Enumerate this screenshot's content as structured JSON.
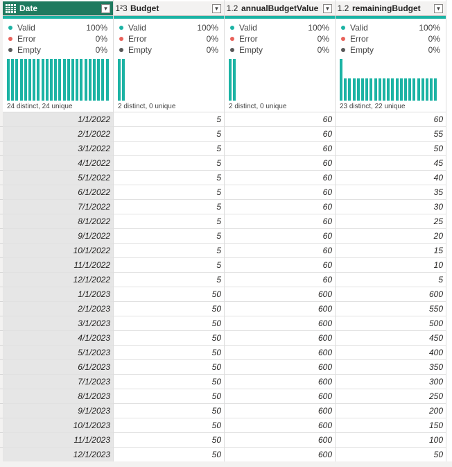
{
  "columns": [
    {
      "type_icon": "calendar-grid-icon",
      "name": "Date",
      "selected": true,
      "quality": {
        "valid": "100%",
        "error": "0%",
        "empty": "0%"
      },
      "distribution_bars": [
        1,
        1,
        1,
        1,
        1,
        1,
        1,
        1,
        1,
        1,
        1,
        1,
        1,
        1,
        1,
        1,
        1,
        1,
        1,
        1,
        1,
        1,
        1,
        1
      ],
      "distinct_text": "24 distinct, 24 unique",
      "values": [
        "1/1/2022",
        "2/1/2022",
        "3/1/2022",
        "4/1/2022",
        "5/1/2022",
        "6/1/2022",
        "7/1/2022",
        "8/1/2022",
        "9/1/2022",
        "10/1/2022",
        "11/1/2022",
        "12/1/2022",
        "1/1/2023",
        "2/1/2023",
        "3/1/2023",
        "4/1/2023",
        "5/1/2023",
        "6/1/2023",
        "7/1/2023",
        "8/1/2023",
        "9/1/2023",
        "10/1/2023",
        "11/1/2023",
        "12/1/2023"
      ]
    },
    {
      "type_icon": "1²3",
      "name": "Budget",
      "selected": false,
      "quality": {
        "valid": "100%",
        "error": "0%",
        "empty": "0%"
      },
      "distribution_bars": [
        1,
        1
      ],
      "distinct_text": "2 distinct, 0 unique",
      "values": [
        "5",
        "5",
        "5",
        "5",
        "5",
        "5",
        "5",
        "5",
        "5",
        "5",
        "5",
        "5",
        "50",
        "50",
        "50",
        "50",
        "50",
        "50",
        "50",
        "50",
        "50",
        "50",
        "50",
        "50"
      ]
    },
    {
      "type_icon": "1.2",
      "name": "annualBudgetValue",
      "selected": false,
      "quality": {
        "valid": "100%",
        "error": "0%",
        "empty": "0%"
      },
      "distribution_bars": [
        1,
        1
      ],
      "distinct_text": "2 distinct, 0 unique",
      "values": [
        "60",
        "60",
        "60",
        "60",
        "60",
        "60",
        "60",
        "60",
        "60",
        "60",
        "60",
        "60",
        "600",
        "600",
        "600",
        "600",
        "600",
        "600",
        "600",
        "600",
        "600",
        "600",
        "600",
        "600"
      ]
    },
    {
      "type_icon": "1.2",
      "name": "remainingBudget",
      "selected": false,
      "quality": {
        "valid": "100%",
        "error": "0%",
        "empty": "0%"
      },
      "distribution_bars": [
        1,
        0.53,
        0.53,
        0.53,
        0.53,
        0.53,
        0.53,
        0.53,
        0.53,
        0.53,
        0.53,
        0.53,
        0.53,
        0.53,
        0.53,
        0.53,
        0.53,
        0.53,
        0.53,
        0.53,
        0.53,
        0.53,
        0.53
      ],
      "distinct_text": "23 distinct, 22 unique",
      "values": [
        "60",
        "55",
        "50",
        "45",
        "40",
        "35",
        "30",
        "25",
        "20",
        "15",
        "10",
        "5",
        "600",
        "550",
        "500",
        "450",
        "400",
        "350",
        "300",
        "250",
        "200",
        "150",
        "100",
        "50"
      ]
    }
  ],
  "quality_labels": {
    "valid": "Valid",
    "error": "Error",
    "empty": "Empty"
  },
  "colors": {
    "valid": "#1cb3a4",
    "error": "#e8615a",
    "empty": "#595959",
    "accent": "#1f7a5f"
  }
}
